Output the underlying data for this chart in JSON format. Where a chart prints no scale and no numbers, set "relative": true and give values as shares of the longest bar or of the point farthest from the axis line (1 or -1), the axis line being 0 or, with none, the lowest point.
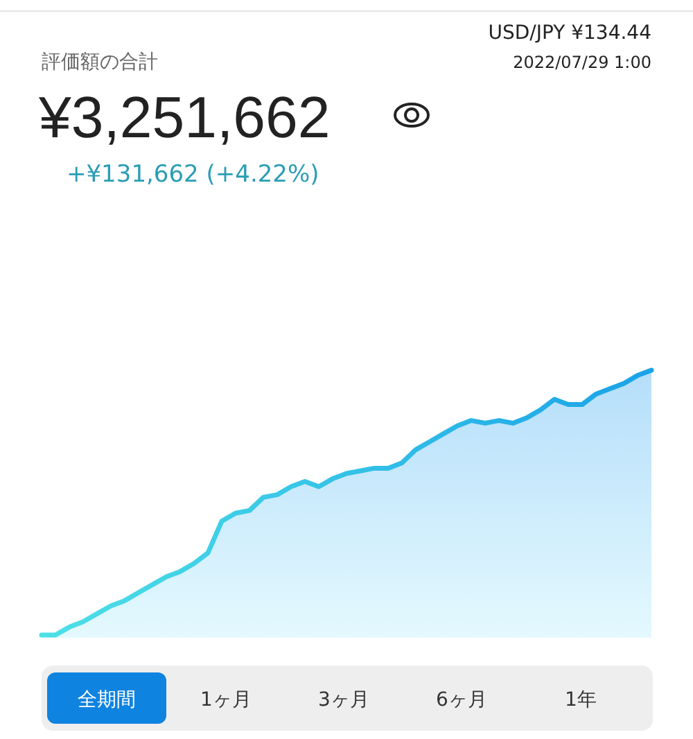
{
  "chart_data": {
    "type": "area",
    "relative": true,
    "title": "評価額の合計",
    "subtitle": "¥3,251,662",
    "annotations": [
      "USD/JPY ¥134.44",
      "2022/07/29 1:00",
      "+¥131,662 (+4.22%)",
      "全期間",
      "1ヶ月",
      "3ヶ月",
      "6ヶ月",
      "1年"
    ],
    "color": "#1aa3e8",
    "categories": [
      null,
      null,
      null,
      null,
      null,
      null,
      null,
      null,
      null,
      null,
      null,
      null,
      null,
      null,
      null,
      null,
      null,
      null,
      null,
      null,
      null,
      null,
      null,
      null,
      null,
      null,
      null,
      null,
      null,
      null,
      null,
      null,
      null,
      null,
      null,
      null,
      null,
      null,
      null,
      null,
      null,
      null,
      null,
      null,
      null
    ],
    "values": [
      0,
      0,
      0.03,
      0.05,
      0.08,
      0.11,
      0.13,
      0.16,
      0.19,
      0.22,
      0.24,
      0.27,
      0.31,
      0.43,
      0.46,
      0.47,
      0.52,
      0.53,
      0.56,
      0.58,
      0.56,
      0.59,
      0.61,
      0.62,
      0.63,
      0.63,
      0.65,
      0.7,
      0.73,
      0.76,
      0.79,
      0.81,
      0.8,
      0.81,
      0.8,
      0.82,
      0.85,
      0.89,
      0.87,
      0.87,
      0.91,
      0.93,
      0.95,
      0.98,
      1
    ]
  }
}
